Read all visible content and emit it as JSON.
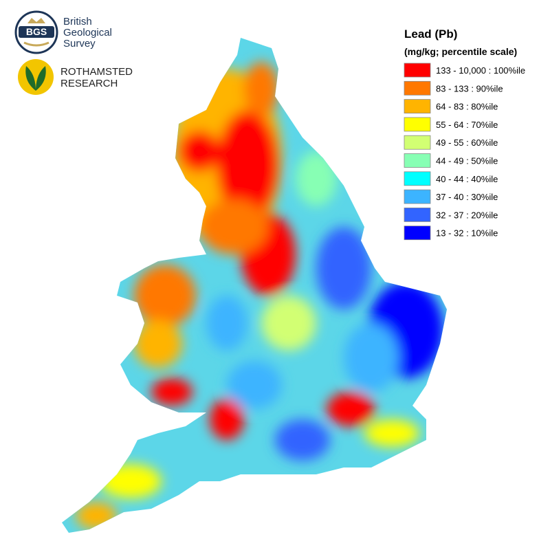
{
  "logos": {
    "bgs": {
      "mark": "BGS",
      "lines": [
        "British",
        "Geological",
        "Survey"
      ]
    },
    "rothamsted": {
      "lines": [
        "ROTHAMSTED",
        "RESEARCH"
      ]
    }
  },
  "legend": {
    "title": "Lead (Pb)",
    "subtitle": "(mg/kg; percentile scale)",
    "items": [
      {
        "label": "133 - 10,000 : 100%ile",
        "color": "#ff0000"
      },
      {
        "label": "83 - 133 : 90%ile",
        "color": "#ff7800"
      },
      {
        "label": "64 - 83 : 80%ile",
        "color": "#ffb400"
      },
      {
        "label": "55 - 64 : 70%ile",
        "color": "#ffff00"
      },
      {
        "label": "49 - 55 : 60%ile",
        "color": "#d2ff73"
      },
      {
        "label": "44 - 49 : 50%ile",
        "color": "#87ffb4"
      },
      {
        "label": "40 - 44 : 40%ile",
        "color": "#00ffff"
      },
      {
        "label": "37 - 40 : 30%ile",
        "color": "#3cb4ff"
      },
      {
        "label": "32 - 37 : 20%ile",
        "color": "#3264ff"
      },
      {
        "label": "13 - 32 : 10%ile",
        "color": "#0000ff"
      }
    ]
  }
}
